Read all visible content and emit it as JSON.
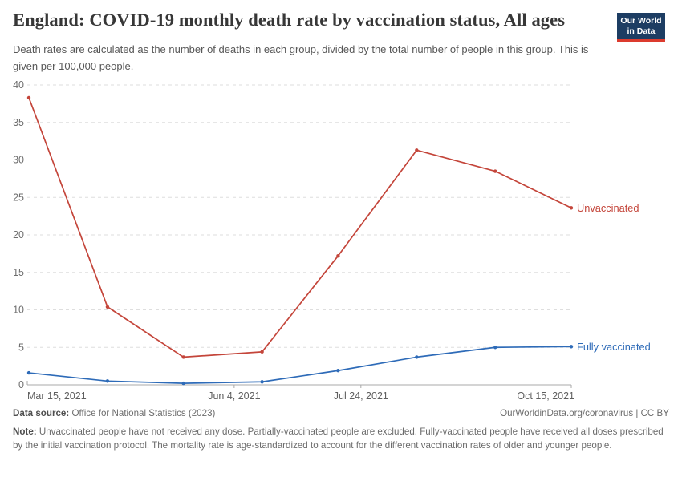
{
  "header": {
    "title": "England: COVID-19 monthly death rate by vaccination status, All ages",
    "subtitle": "Death rates are calculated as the number of deaths in each group, divided by the total number of people in this group. This is given per 100,000 people.",
    "logo": {
      "line1": "Our World",
      "line2": "in Data"
    }
  },
  "chart_data": {
    "type": "line",
    "title": "England: COVID-19 monthly death rate by vaccination status, All ages",
    "x": [
      "Mar 15, 2021",
      "Apr 15, 2021",
      "May 15, 2021",
      "Jun 15, 2021",
      "Jul 15, 2021",
      "Aug 15, 2021",
      "Sep 15, 2021",
      "Oct 15, 2021"
    ],
    "x_days": [
      0,
      31,
      61,
      92,
      122,
      153,
      184,
      214
    ],
    "series": [
      {
        "name": "Unvaccinated",
        "color": "#c4453a",
        "values": [
          38.3,
          10.4,
          3.7,
          4.4,
          17.2,
          31.3,
          28.5,
          23.6
        ]
      },
      {
        "name": "Fully vaccinated",
        "color": "#2e6bb8",
        "values": [
          1.6,
          0.5,
          0.2,
          0.4,
          1.9,
          3.7,
          5.0,
          5.1
        ]
      }
    ],
    "ylim": [
      0,
      40
    ],
    "yticks": [
      0,
      5,
      10,
      15,
      20,
      25,
      30,
      35,
      40
    ],
    "xticks": [
      {
        "label": "Mar 15, 2021",
        "day": 0,
        "align": "start"
      },
      {
        "label": "Jun 4, 2021",
        "day": 81,
        "align": "middle"
      },
      {
        "label": "Jul 24, 2021",
        "day": 131,
        "align": "middle"
      },
      {
        "label": "Oct 15, 2021",
        "day": 214,
        "align": "end"
      }
    ],
    "grid": "dashed-horizontal",
    "legend_position": "right-of-line-end"
  },
  "footer": {
    "source_label": "Data source:",
    "source_text": "Office for National Statistics (2023)",
    "attribution": "OurWorldinData.org/coronavirus | CC BY",
    "note_label": "Note:",
    "note_text": "Unvaccinated people have not received any dose. Partially-vaccinated people are excluded. Fully-vaccinated people have received all doses prescribed by the initial vaccination protocol. The mortality rate is age-standardized to account for the different vaccination rates of older and younger people."
  }
}
